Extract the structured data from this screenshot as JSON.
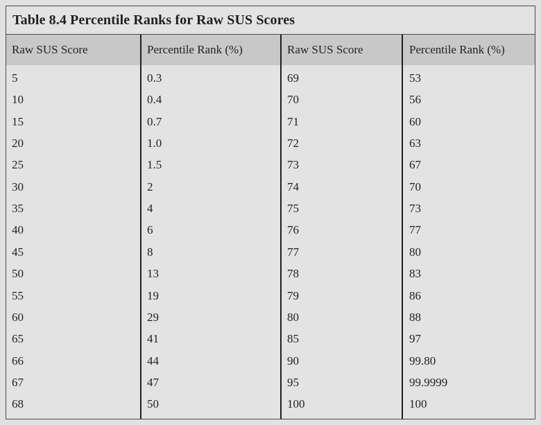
{
  "table": {
    "title": "Table 8.4  Percentile Ranks for Raw SUS Scores",
    "headers": [
      "Raw SUS Score",
      "Percentile Rank (%)",
      "Raw SUS Score",
      "Percentile Rank (%)"
    ],
    "rows": [
      [
        "5",
        "0.3",
        "69",
        "53"
      ],
      [
        "10",
        "0.4",
        "70",
        "56"
      ],
      [
        "15",
        "0.7",
        "71",
        "60"
      ],
      [
        "20",
        "1.0",
        "72",
        "63"
      ],
      [
        "25",
        "1.5",
        "73",
        "67"
      ],
      [
        "30",
        "2",
        "74",
        "70"
      ],
      [
        "35",
        "4",
        "75",
        "73"
      ],
      [
        "40",
        "6",
        "76",
        "77"
      ],
      [
        "45",
        "8",
        "77",
        "80"
      ],
      [
        "50",
        "13",
        "78",
        "83"
      ],
      [
        "55",
        "19",
        "79",
        "86"
      ],
      [
        "60",
        "29",
        "80",
        "88"
      ],
      [
        "65",
        "41",
        "85",
        "97"
      ],
      [
        "66",
        "44",
        "90",
        "99.80"
      ],
      [
        "67",
        "47",
        "95",
        "99.9999"
      ],
      [
        "68",
        "50",
        "100",
        "100"
      ]
    ]
  }
}
